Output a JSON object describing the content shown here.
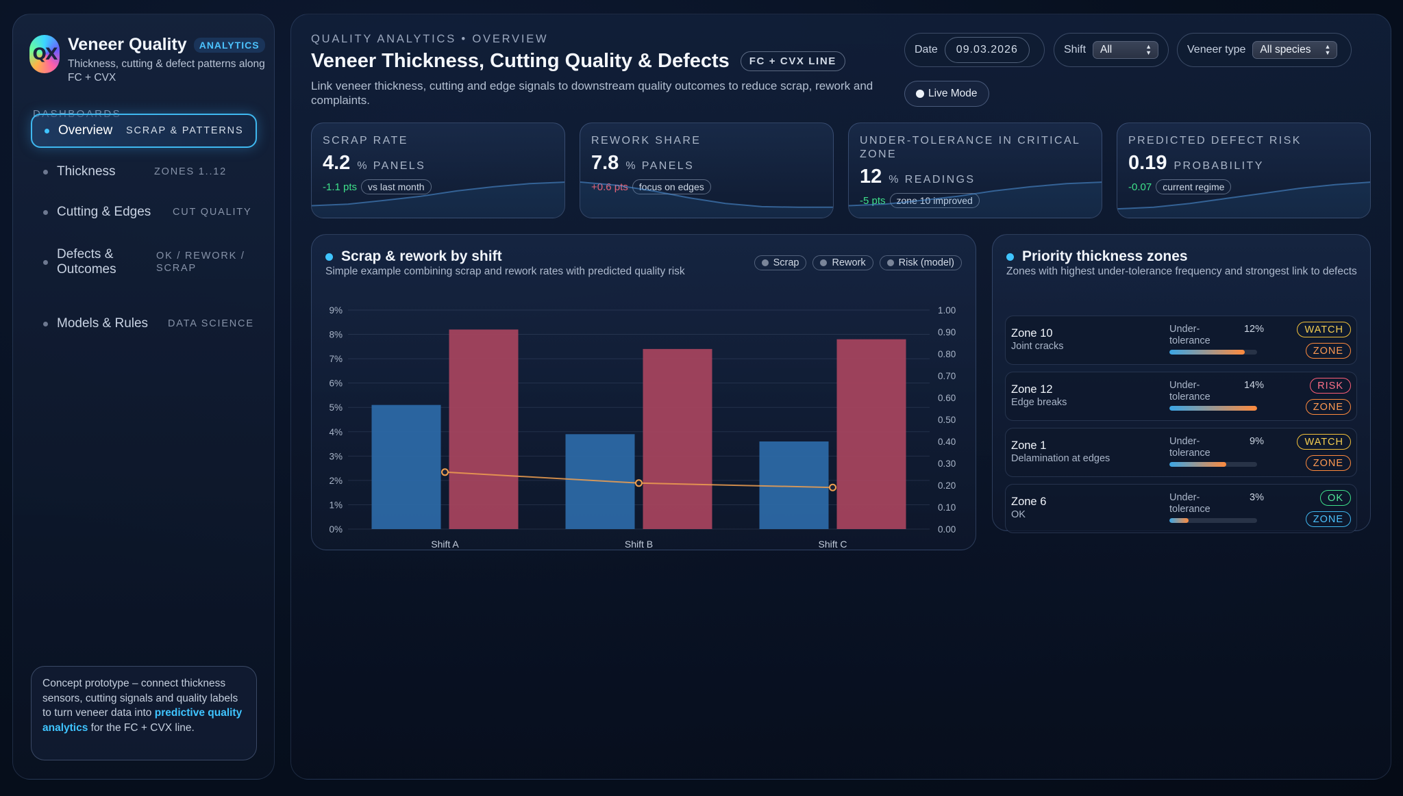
{
  "brand": {
    "logo_text": "QX",
    "title": "Veneer Quality",
    "badge": "ANALYTICS",
    "subtitle": "Thickness, cutting & defect patterns along FC + CVX"
  },
  "sidebar": {
    "section_label": "DASHBOARDS",
    "items": [
      {
        "label": "Overview",
        "tag": "SCRAP & PATTERNS",
        "active": true
      },
      {
        "label": "Thickness",
        "tag": "ZONES 1..12"
      },
      {
        "label": "Cutting & Edges",
        "tag": "CUT QUALITY"
      },
      {
        "label": "Defects & Outcomes",
        "tag": "OK / REWORK / SCRAP"
      },
      {
        "label": "Models & Rules",
        "tag": "DATA SCIENCE"
      }
    ],
    "note": {
      "text_before": "Concept prototype – connect thickness sensors, cutting signals and quality labels to turn veneer data into",
      "highlight": "predictive quality analytics",
      "text_after": "for the FC + CVX line."
    }
  },
  "header": {
    "eyebrow": "QUALITY ANALYTICS • OVERVIEW",
    "title": "Veneer Thickness, Cutting Quality & Defects",
    "line_badge": "FC + CVX LINE",
    "description": "Link veneer thickness, cutting and edge signals to downstream quality outcomes to reduce scrap, rework and complaints."
  },
  "controls": {
    "date_label": "Date",
    "date_value": "09.03.2026",
    "shift_label": "Shift",
    "shift_value": "All",
    "veneer_label": "Veneer type",
    "veneer_value": "All species",
    "live_mode": "Live Mode"
  },
  "kpis": [
    {
      "title": "SCRAP RATE",
      "value": "4.2",
      "unit": "% PANELS",
      "delta": "-1.1 pts",
      "delta_type": "good",
      "pill": "vs last month",
      "trend": [
        0.25,
        0.3,
        0.42,
        0.55,
        0.72,
        0.85,
        0.95,
        1.0
      ]
    },
    {
      "title": "REWORK SHARE",
      "value": "7.8",
      "unit": "% PANELS",
      "delta": "+0.6 pts",
      "delta_type": "bad",
      "pill": "focus on edges",
      "trend": [
        1.0,
        0.9,
        0.72,
        0.5,
        0.32,
        0.22,
        0.2,
        0.2
      ]
    },
    {
      "title": "UNDER-TOLERANCE IN CRITICAL ZONE",
      "value": "12",
      "unit": "% READINGS",
      "delta": "-5 pts",
      "delta_type": "good",
      "pill": "zone 10 improved",
      "trend": [
        0.25,
        0.3,
        0.42,
        0.55,
        0.72,
        0.85,
        0.95,
        1.0
      ]
    },
    {
      "title": "PREDICTED DEFECT RISK",
      "value": "0.19",
      "unit": "PROBABILITY",
      "delta": "-0.07",
      "delta_type": "good",
      "pill": "current regime",
      "trend": [
        0.15,
        0.2,
        0.32,
        0.48,
        0.64,
        0.8,
        0.92,
        1.0
      ]
    }
  ],
  "chart_card": {
    "title": "Scrap & rework by shift",
    "subtitle": "Simple example combining scrap and rework rates with predicted quality risk",
    "legend": [
      "Scrap",
      "Rework",
      "Risk (model)"
    ]
  },
  "chart_data": {
    "type": "bar",
    "categories": [
      "Shift A",
      "Shift B",
      "Shift C"
    ],
    "series": [
      {
        "name": "Scrap",
        "kind": "bar",
        "axis": "left",
        "color": "#2d6aa8",
        "values": [
          5.1,
          3.9,
          3.6
        ]
      },
      {
        "name": "Rework",
        "kind": "bar",
        "axis": "left",
        "color": "#a8445e",
        "values": [
          8.2,
          7.4,
          7.8
        ]
      },
      {
        "name": "Risk (model)",
        "kind": "line",
        "axis": "right",
        "color": "#f0a050",
        "values": [
          0.26,
          0.21,
          0.19
        ]
      }
    ],
    "ylim": [
      0,
      9
    ],
    "yticks": [
      "0%",
      "1%",
      "2%",
      "3%",
      "4%",
      "5%",
      "6%",
      "7%",
      "8%",
      "9%"
    ],
    "y2lim": [
      0,
      1
    ],
    "y2ticks": [
      "0.00",
      "0.10",
      "0.20",
      "0.30",
      "0.40",
      "0.50",
      "0.60",
      "0.70",
      "0.80",
      "0.90",
      "1.00"
    ],
    "grid": true
  },
  "zones_card": {
    "title": "Priority thickness zones",
    "subtitle": "Zones with highest under-tolerance frequency and strongest link to defects",
    "metric_label": "Under-tolerance",
    "zone_tag": "ZONE",
    "zones": [
      {
        "name": "Zone 10",
        "desc": "Joint cracks",
        "pct": "12%",
        "fill": 0.86,
        "status": "WATCH",
        "status_type": "watch",
        "zone_color": "orange"
      },
      {
        "name": "Zone 12",
        "desc": "Edge breaks",
        "pct": "14%",
        "fill": 1.0,
        "status": "RISK",
        "status_type": "risk",
        "zone_color": "orange"
      },
      {
        "name": "Zone 1",
        "desc": "Delamination at edges",
        "pct": "9%",
        "fill": 0.65,
        "status": "WATCH",
        "status_type": "watch",
        "zone_color": "orange"
      },
      {
        "name": "Zone 6",
        "desc": "OK",
        "pct": "3%",
        "fill": 0.22,
        "status": "OK",
        "status_type": "ok",
        "zone_color": "blue"
      }
    ]
  }
}
